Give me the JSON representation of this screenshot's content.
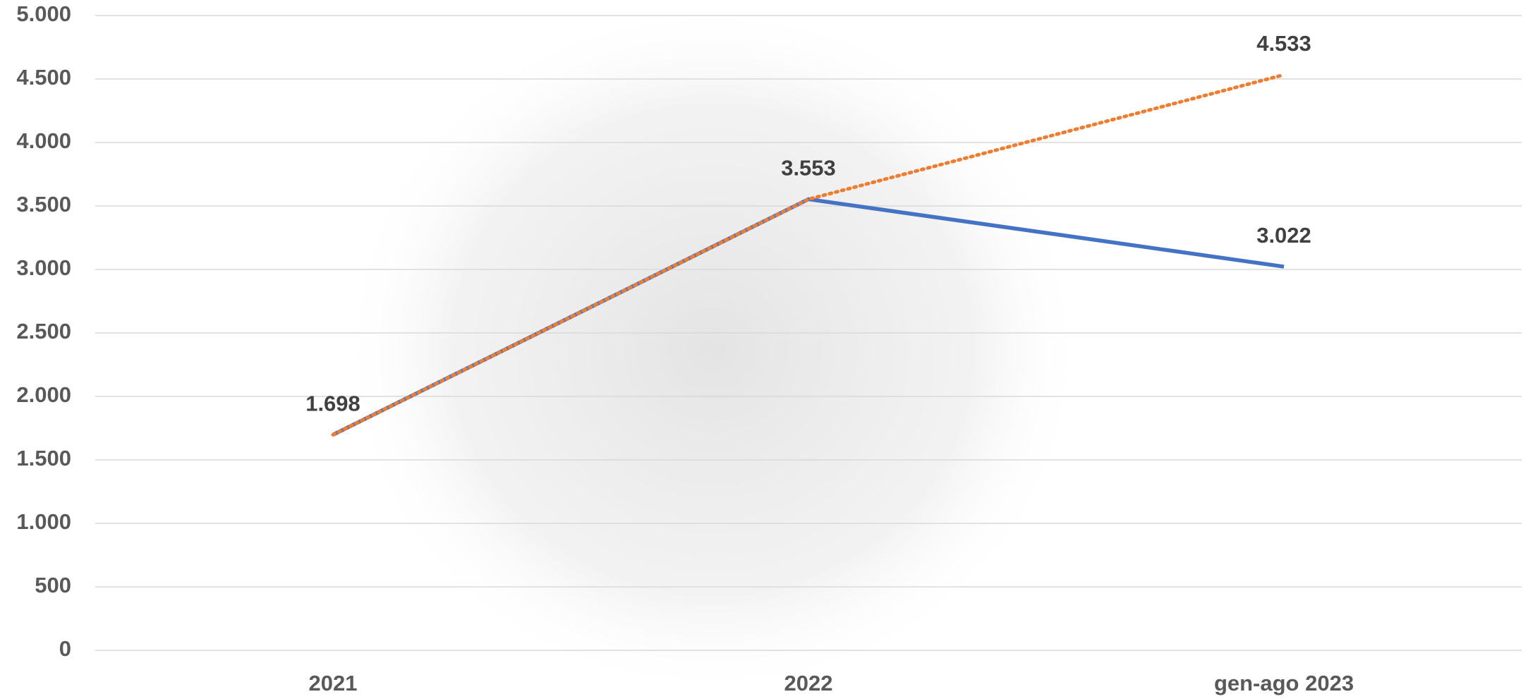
{
  "chart_data": {
    "type": "line",
    "categories": [
      "2021",
      "2022",
      "gen-ago 2023"
    ],
    "series": [
      {
        "color": "#4472c4",
        "dash": "solid",
        "values": [
          1698,
          3553,
          3022
        ],
        "value_labels": [
          "1.698",
          "3.553",
          "3.022"
        ]
      },
      {
        "color": "#ed7d31",
        "dash": "dotted",
        "values": [
          1698,
          3553,
          4533
        ],
        "value_labels": [
          null,
          null,
          "4.533"
        ]
      }
    ],
    "ylim": [
      0,
      5000
    ],
    "yticks": [
      0,
      500,
      {
        "value": 1000,
        "label": "1.000"
      },
      {
        "value": 1500,
        "label": "1.500"
      },
      {
        "value": 2000,
        "label": "2.000"
      },
      {
        "value": 2500,
        "label": "2.500"
      },
      {
        "value": 3000,
        "label": "3.000"
      },
      {
        "value": 3500,
        "label": "3.500"
      },
      {
        "value": 4000,
        "label": "4.000"
      },
      {
        "value": 4500,
        "label": "4.500"
      },
      {
        "value": 5000,
        "label": "5.000"
      }
    ],
    "grid": true
  }
}
